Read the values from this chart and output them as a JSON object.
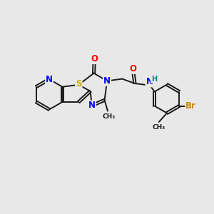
{
  "background_color": "#e8e8e8",
  "atom_colors": {
    "S": "#ccaa00",
    "N": "#0000ff",
    "O": "#ff0000",
    "H": "#008080",
    "Br": "#cc8800",
    "C": "#1a1a1a"
  },
  "lw": 1.4,
  "font_size": 8.5,
  "figsize": [
    3.0,
    3.0
  ],
  "dpi": 100
}
